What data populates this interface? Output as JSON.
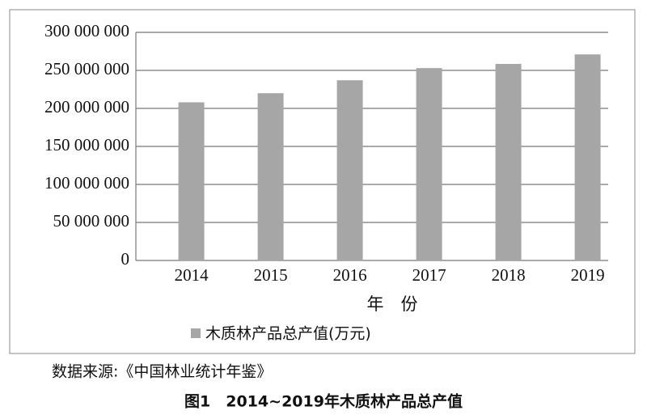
{
  "chart_data": {
    "type": "bar",
    "categories": [
      "2014",
      "2015",
      "2016",
      "2017",
      "2018",
      "2019"
    ],
    "series": [
      {
        "name": "木质林产品总产值(万元)",
        "color": "#a6a6a6",
        "values": [
          208000000,
          220000000,
          237000000,
          253000000,
          258500000,
          271000000
        ]
      }
    ],
    "x_label": "年　份",
    "ylim": [
      0,
      300000000
    ],
    "yticks": [
      0,
      {
        "value": 50000000,
        "label": "50 000 000"
      },
      {
        "value": 100000000,
        "label": "100 000 000"
      },
      {
        "value": 150000000,
        "label": "150 000 000"
      },
      {
        "value": 200000000,
        "label": "200 000 000"
      },
      {
        "value": 250000000,
        "label": "250 000 000"
      },
      {
        "value": 300000000,
        "label": "300 000 000"
      }
    ],
    "grid": true,
    "legend": "bottom",
    "source": "数据来源:《中国林业统计年鉴》",
    "caption": "图1　2014~2019年木质林产品总产值"
  }
}
